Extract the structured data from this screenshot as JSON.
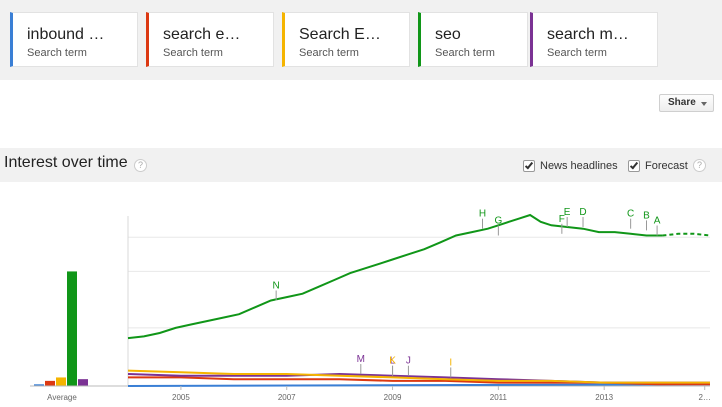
{
  "terms": [
    {
      "label": "inbound …",
      "sublabel": "Search term",
      "color": "#3a7fd5"
    },
    {
      "label": "search e…",
      "sublabel": "Search term",
      "color": "#dc3912"
    },
    {
      "label": "Search E…",
      "sublabel": "Search term",
      "color": "#f5b400"
    },
    {
      "label": "seo",
      "sublabel": "Search term",
      "color": "#109618"
    },
    {
      "label": "search m…",
      "sublabel": "Search term",
      "color": "#7b3294"
    }
  ],
  "share": {
    "label": "Share"
  },
  "interest": {
    "title": "Interest over time",
    "help": "?",
    "news_headlines": {
      "label": "News headlines",
      "checked": true
    },
    "forecast": {
      "label": "Forecast",
      "checked": true
    }
  },
  "chart_data": {
    "type": "line",
    "x_ticks": [
      "2005",
      "2007",
      "2009",
      "2011",
      "2013",
      "2…"
    ],
    "x_range": [
      2004,
      2015
    ],
    "ylim": [
      0,
      100
    ],
    "average_label": "Average",
    "average_bars": [
      {
        "term": "inbound …",
        "value": 1,
        "color": "#3a7fd5"
      },
      {
        "term": "search e…",
        "value": 3,
        "color": "#dc3912"
      },
      {
        "term": "Search E…",
        "value": 5,
        "color": "#f5b400"
      },
      {
        "term": "seo",
        "value": 67,
        "color": "#109618"
      },
      {
        "term": "search m…",
        "value": 4,
        "color": "#7b3294"
      }
    ],
    "series": [
      {
        "color": "#109618",
        "points": [
          [
            2004.0,
            28
          ],
          [
            2004.3,
            29
          ],
          [
            2004.6,
            31
          ],
          [
            2004.9,
            34
          ],
          [
            2005.2,
            36
          ],
          [
            2005.5,
            38
          ],
          [
            2005.8,
            40
          ],
          [
            2006.1,
            42
          ],
          [
            2006.4,
            46
          ],
          [
            2006.7,
            50
          ],
          [
            2007.0,
            52
          ],
          [
            2007.3,
            54
          ],
          [
            2007.6,
            58
          ],
          [
            2007.9,
            62
          ],
          [
            2008.2,
            66
          ],
          [
            2008.4,
            68
          ],
          [
            2008.6,
            70
          ],
          [
            2008.8,
            72
          ],
          [
            2009.0,
            74
          ],
          [
            2009.3,
            77
          ],
          [
            2009.6,
            80
          ],
          [
            2009.9,
            84
          ],
          [
            2010.2,
            88
          ],
          [
            2010.5,
            90
          ],
          [
            2010.8,
            92
          ],
          [
            2011.0,
            94
          ],
          [
            2011.2,
            96
          ],
          [
            2011.4,
            98
          ],
          [
            2011.6,
            100
          ],
          [
            2011.8,
            96
          ],
          [
            2012.0,
            94
          ],
          [
            2012.3,
            93
          ],
          [
            2012.6,
            92
          ],
          [
            2012.9,
            90
          ],
          [
            2013.2,
            90
          ],
          [
            2013.5,
            89
          ],
          [
            2013.8,
            88
          ],
          [
            2014.1,
            88
          ]
        ],
        "forecast": [
          [
            2014.1,
            88
          ],
          [
            2014.4,
            89
          ],
          [
            2014.7,
            89
          ],
          [
            2015.0,
            88
          ]
        ]
      },
      {
        "color": "#f5b400",
        "points": [
          [
            2004.0,
            9
          ],
          [
            2005.0,
            8
          ],
          [
            2006.0,
            7
          ],
          [
            2007.0,
            7
          ],
          [
            2008.0,
            6
          ],
          [
            2009.0,
            5
          ],
          [
            2010.0,
            4
          ],
          [
            2011.0,
            3
          ],
          [
            2012.0,
            3
          ],
          [
            2013.0,
            2
          ],
          [
            2014.0,
            2
          ],
          [
            2015.0,
            2
          ]
        ]
      },
      {
        "color": "#7b3294",
        "points": [
          [
            2004.0,
            7
          ],
          [
            2005.0,
            6
          ],
          [
            2006.0,
            6
          ],
          [
            2007.0,
            6
          ],
          [
            2008.0,
            7
          ],
          [
            2009.0,
            6
          ],
          [
            2010.0,
            5
          ],
          [
            2011.0,
            4
          ],
          [
            2012.0,
            3
          ],
          [
            2013.0,
            2
          ],
          [
            2014.0,
            2
          ],
          [
            2015.0,
            2
          ]
        ]
      },
      {
        "color": "#dc3912",
        "points": [
          [
            2004.0,
            5
          ],
          [
            2005.0,
            5
          ],
          [
            2006.0,
            4
          ],
          [
            2007.0,
            4
          ],
          [
            2008.0,
            4
          ],
          [
            2009.0,
            3
          ],
          [
            2010.0,
            3
          ],
          [
            2011.0,
            2
          ],
          [
            2012.0,
            2
          ],
          [
            2013.0,
            2
          ],
          [
            2014.0,
            1
          ],
          [
            2015.0,
            1
          ]
        ]
      },
      {
        "color": "#3a7fd5",
        "points": [
          [
            2004.0,
            0
          ],
          [
            2015.0,
            1
          ]
        ]
      }
    ],
    "annotations": [
      {
        "label": "N",
        "x": 2006.8,
        "y": 50,
        "color": "#109618"
      },
      {
        "label": "H",
        "x": 2010.7,
        "y": 92,
        "color": "#109618"
      },
      {
        "label": "G",
        "x": 2011.0,
        "y": 88,
        "color": "#109618"
      },
      {
        "label": "F",
        "x": 2012.2,
        "y": 89,
        "color": "#109618"
      },
      {
        "label": "E",
        "x": 2012.3,
        "y": 93,
        "color": "#109618"
      },
      {
        "label": "D",
        "x": 2012.6,
        "y": 93,
        "color": "#109618"
      },
      {
        "label": "C",
        "x": 2013.5,
        "y": 92,
        "color": "#109618"
      },
      {
        "label": "B",
        "x": 2013.8,
        "y": 91,
        "color": "#109618"
      },
      {
        "label": "A",
        "x": 2014.0,
        "y": 88,
        "color": "#109618"
      },
      {
        "label": "M",
        "x": 2008.4,
        "y": 7,
        "color": "#7b3294"
      },
      {
        "label": "L",
        "x": 2009.0,
        "y": 6,
        "color": "#7b3294"
      },
      {
        "label": "K",
        "x": 2009.0,
        "y": 6,
        "color": "#f5b400"
      },
      {
        "label": "J",
        "x": 2009.3,
        "y": 6,
        "color": "#7b3294"
      },
      {
        "label": "I",
        "x": 2010.1,
        "y": 5,
        "color": "#f5b400"
      }
    ]
  }
}
